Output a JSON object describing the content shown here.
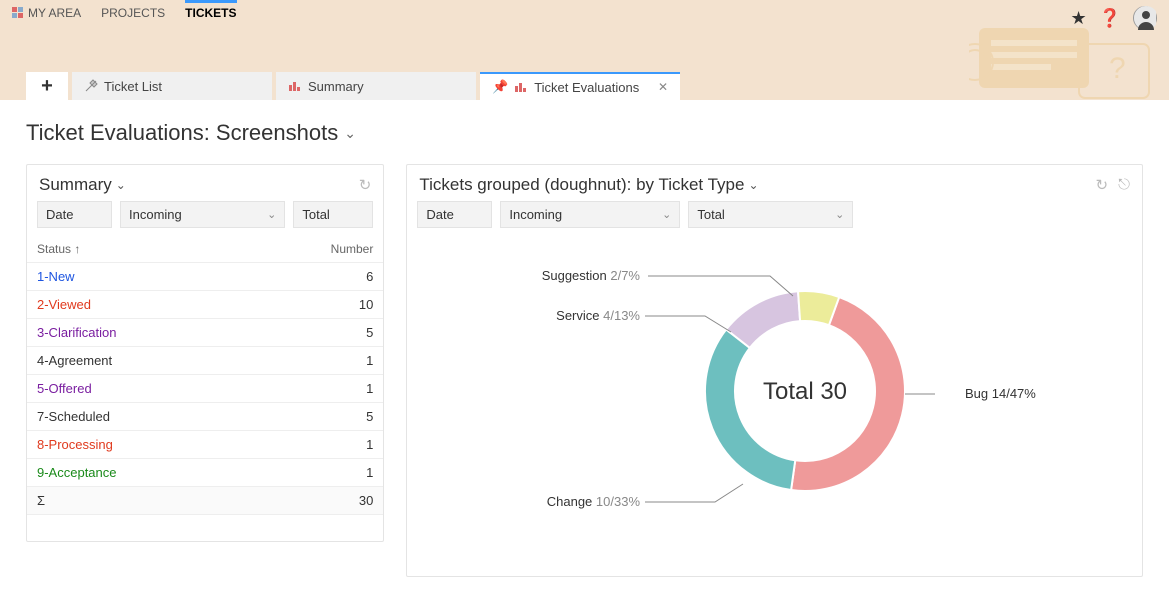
{
  "nav": {
    "my_area": "MY AREA",
    "projects": "PROJECTS",
    "tickets": "TICKETS"
  },
  "tabs": {
    "ticket_list": "Ticket List",
    "summary": "Summary",
    "ticket_evaluations": "Ticket Evaluations"
  },
  "page_title": "Ticket Evaluations: Screenshots",
  "summary_panel": {
    "title": "Summary",
    "filters": {
      "date": "Date",
      "incoming": "Incoming",
      "total": "Total"
    },
    "col_status": "Status",
    "col_number": "Number",
    "rows": [
      {
        "label": "1-New",
        "value": 6,
        "color": "#1e55e0"
      },
      {
        "label": "2-Viewed",
        "value": 10,
        "color": "#e03a1e"
      },
      {
        "label": "3-Clarification",
        "value": 5,
        "color": "#7a1ea0"
      },
      {
        "label": "4-Agreement",
        "value": 1,
        "color": "#333333"
      },
      {
        "label": "5-Offered",
        "value": 1,
        "color": "#7a1ea0"
      },
      {
        "label": "7-Scheduled",
        "value": 5,
        "color": "#333333"
      },
      {
        "label": "8-Processing",
        "value": 1,
        "color": "#e03a1e"
      },
      {
        "label": "9-Acceptance",
        "value": 1,
        "color": "#1a8a1a"
      }
    ],
    "sum_symbol": "Σ",
    "sum_value": 30
  },
  "donut_panel": {
    "title": "Tickets grouped (doughnut): by Ticket Type",
    "filters": {
      "date": "Date",
      "incoming": "Incoming",
      "total": "Total"
    },
    "center_label": "Total 30",
    "total": 30,
    "slices": [
      {
        "name": "Bug",
        "count": 14,
        "pct": 47,
        "color": "#ef9a9a",
        "label": "Bug 14/47%"
      },
      {
        "name": "Change",
        "count": 10,
        "pct": 33,
        "color": "#6dbfbf",
        "label_name": "Change",
        "label_rest": "10/33%"
      },
      {
        "name": "Service",
        "count": 4,
        "pct": 13,
        "color": "#d7c5e0",
        "label_name": "Service",
        "label_rest": "4/13%"
      },
      {
        "name": "Suggestion",
        "count": 2,
        "pct": 7,
        "color": "#ecec9a",
        "label_name": "Suggestion",
        "label_rest": "2/7%"
      }
    ],
    "background_color": "#ffffff",
    "ring_outer_r": 100,
    "ring_inner_r": 70
  }
}
